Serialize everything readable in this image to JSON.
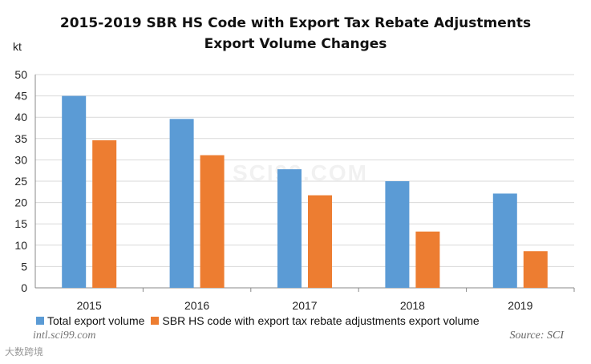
{
  "chart_data": {
    "type": "bar",
    "title_line1": "2015-2019 SBR HS Code with Export Tax Rebate Adjustments",
    "title_line2": "Export Volume Changes",
    "ylabel": "kt",
    "xlabel": "",
    "categories": [
      "2015",
      "2016",
      "2017",
      "2018",
      "2019"
    ],
    "series": [
      {
        "name": "Total export volume",
        "values": [
          45.0,
          39.6,
          27.8,
          25.0,
          22.1
        ],
        "color": "#5b9bd5"
      },
      {
        "name": "SBR HS code with export tax rebate adjustments export volume",
        "values": [
          34.6,
          31.1,
          21.7,
          13.2,
          8.6
        ],
        "color": "#ed7d31"
      }
    ],
    "ylim": [
      0,
      50
    ],
    "yticks": [
      0,
      5,
      10,
      15,
      20,
      25,
      30,
      35,
      40,
      45,
      50
    ],
    "grid": true,
    "legend": "bottom-left"
  },
  "footer": {
    "site": "intl.sci99.com",
    "source": "Source: SCI",
    "mark": "大数跨境"
  },
  "watermark": "SCI99.COM"
}
